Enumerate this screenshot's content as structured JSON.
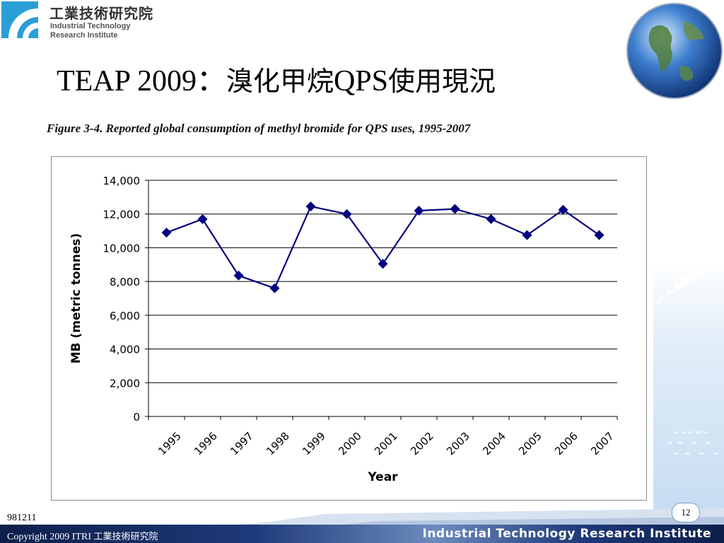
{
  "header": {
    "org_name_zh": "工業技術研究院",
    "org_name_en_line1": "Industrial Technology",
    "org_name_en_line2": "Research Institute",
    "logo_icon": "itri-logo-icon",
    "globe_icon": "globe-icon"
  },
  "slide": {
    "title_prefix": "TEAP 2009：",
    "title_zh1": "溴化甲烷",
    "title_mid": "QPS",
    "title_zh2": "使用現況",
    "figure_caption": "Figure 3-4. Reported global consumption of methyl bromide for QPS uses, 1995-2007"
  },
  "chart_data": {
    "type": "line",
    "title": "",
    "xlabel": "Year",
    "ylabel": "MB (metric tonnes)",
    "categories": [
      "1995",
      "1996",
      "1997",
      "1998",
      "1999",
      "2000",
      "2001",
      "2002",
      "2003",
      "2004",
      "2005",
      "2006",
      "2007"
    ],
    "series": [
      {
        "values": [
          10900,
          11700,
          8350,
          7600,
          12450,
          12000,
          9050,
          12200,
          12300,
          11700,
          10750,
          12250,
          10750
        ]
      }
    ],
    "ylim": [
      0,
      14000
    ],
    "yticks": [
      0,
      2000,
      4000,
      6000,
      8000,
      10000,
      12000,
      14000
    ],
    "ytick_labels": [
      "0",
      "2,000",
      "4,000",
      "6,000",
      "8,000",
      "10,000",
      "12,000",
      "14,000"
    ],
    "grid": true,
    "legend": "none",
    "line_color": "#000080",
    "marker": "diamond"
  },
  "footer": {
    "date_code": "981211",
    "page_number": "12",
    "copyright_en": "Copyright 2009 ITRI ",
    "copyright_zh": "工業技術研究院",
    "org_name": "Industrial Technology Research Institute"
  },
  "colors": {
    "accent": "#1f3a7a",
    "series": "#000080",
    "logo": "#2a9fd6"
  }
}
